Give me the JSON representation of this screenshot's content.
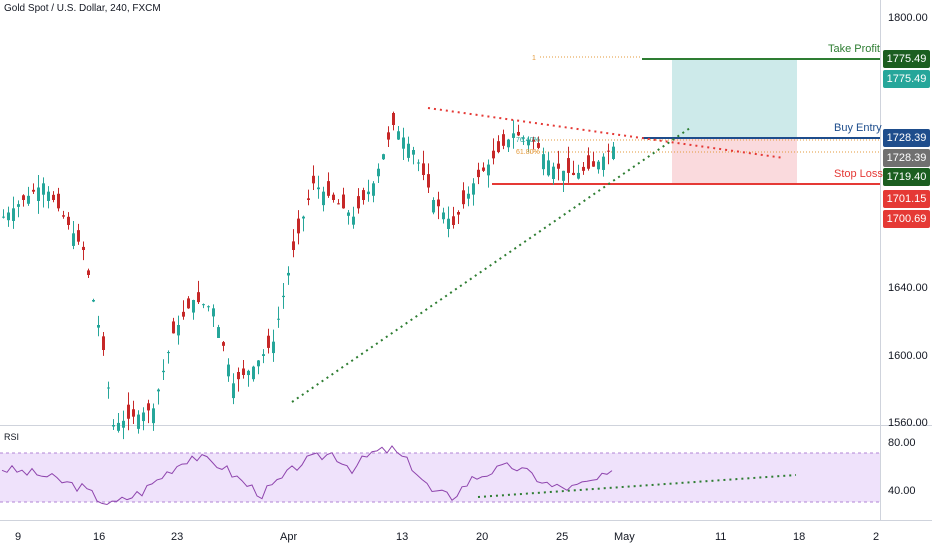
{
  "header": {
    "title": "Gold Spot / U.S. Dollar, 240, FXCM"
  },
  "rsi": {
    "label": "RSI",
    "ticks": [
      "80.00",
      "40.00"
    ]
  },
  "price_axis": {
    "ticks": [
      "1800.00",
      "1640.00",
      "1600.00",
      "1560.00"
    ]
  },
  "time_axis": {
    "labels": [
      "9",
      "16",
      "23",
      "Apr",
      "13",
      "20",
      "25",
      "May",
      "11",
      "18",
      "2"
    ]
  },
  "annotations": {
    "take_profit": "Take Profit",
    "buy_entry": "Buy Entry",
    "stop_loss": "Stop Loss",
    "fib_76": "76.40%",
    "fib_61": "61.80%",
    "fib_one": "1"
  },
  "price_labels": [
    {
      "text": "1775.49",
      "color": "#1b5e20"
    },
    {
      "text": "1775.49",
      "color": "#26a69a"
    },
    {
      "text": "1728.39",
      "color": "#1e4d8c"
    },
    {
      "text": "1728.39",
      "color": "#707070"
    },
    {
      "text": "1719.40",
      "color": "#1b5e20"
    },
    {
      "text": "1701.15",
      "color": "#e53935"
    },
    {
      "text": "1700.69",
      "color": "#e53935"
    }
  ],
  "colors": {
    "up": "#26a69a",
    "down": "#c62828",
    "rsi_line": "#8e44ad",
    "rsi_band": "#e9d7f7",
    "take_profit": "#2e7d32",
    "buy_entry": "#1e4d8c",
    "stop_loss": "#e53935",
    "profit_zone": "#cdeaea",
    "loss_zone": "#fadadd",
    "trendline_up": "#2e7d32",
    "trendline_down": "#e53935"
  },
  "chart_data": {
    "type": "candlestick",
    "title": "Gold Spot / U.S. Dollar, 240, FXCM",
    "y_range": [
      1555,
      1810
    ],
    "levels": {
      "take_profit": 1775.49,
      "buy_entry": 1728.39,
      "stop_loss": 1701.15
    },
    "close_path": [
      [
        0,
        1680
      ],
      [
        4,
        1700
      ],
      [
        8,
        1660
      ],
      [
        10,
        1600
      ],
      [
        11,
        1555
      ],
      [
        15,
        1565
      ],
      [
        17,
        1610
      ],
      [
        19,
        1630
      ],
      [
        21,
        1625
      ],
      [
        23,
        1580
      ],
      [
        25,
        1590
      ],
      [
        27,
        1605
      ],
      [
        29,
        1660
      ],
      [
        31,
        1700
      ],
      [
        33,
        1690
      ],
      [
        35,
        1680
      ],
      [
        37,
        1700
      ],
      [
        39,
        1735
      ],
      [
        41,
        1720
      ],
      [
        43,
        1690
      ],
      [
        45,
        1675
      ],
      [
        47,
        1700
      ],
      [
        49,
        1715
      ],
      [
        51,
        1730
      ],
      [
        53,
        1725
      ],
      [
        55,
        1710
      ],
      [
        57,
        1705
      ],
      [
        59,
        1710
      ],
      [
        61,
        1722
      ]
    ],
    "rsi_path": [
      [
        0,
        60
      ],
      [
        4,
        55
      ],
      [
        8,
        45
      ],
      [
        10,
        35
      ],
      [
        11,
        32
      ],
      [
        14,
        42
      ],
      [
        17,
        60
      ],
      [
        19,
        70
      ],
      [
        22,
        62
      ],
      [
        24,
        50
      ],
      [
        26,
        40
      ],
      [
        28,
        52
      ],
      [
        30,
        65
      ],
      [
        33,
        72
      ],
      [
        35,
        60
      ],
      [
        37,
        72
      ],
      [
        39,
        75
      ],
      [
        41,
        62
      ],
      [
        43,
        42
      ],
      [
        45,
        38
      ],
      [
        47,
        52
      ],
      [
        49,
        58
      ],
      [
        51,
        62
      ],
      [
        53,
        55
      ],
      [
        55,
        46
      ],
      [
        57,
        45
      ],
      [
        59,
        50
      ],
      [
        61,
        55
      ]
    ]
  }
}
